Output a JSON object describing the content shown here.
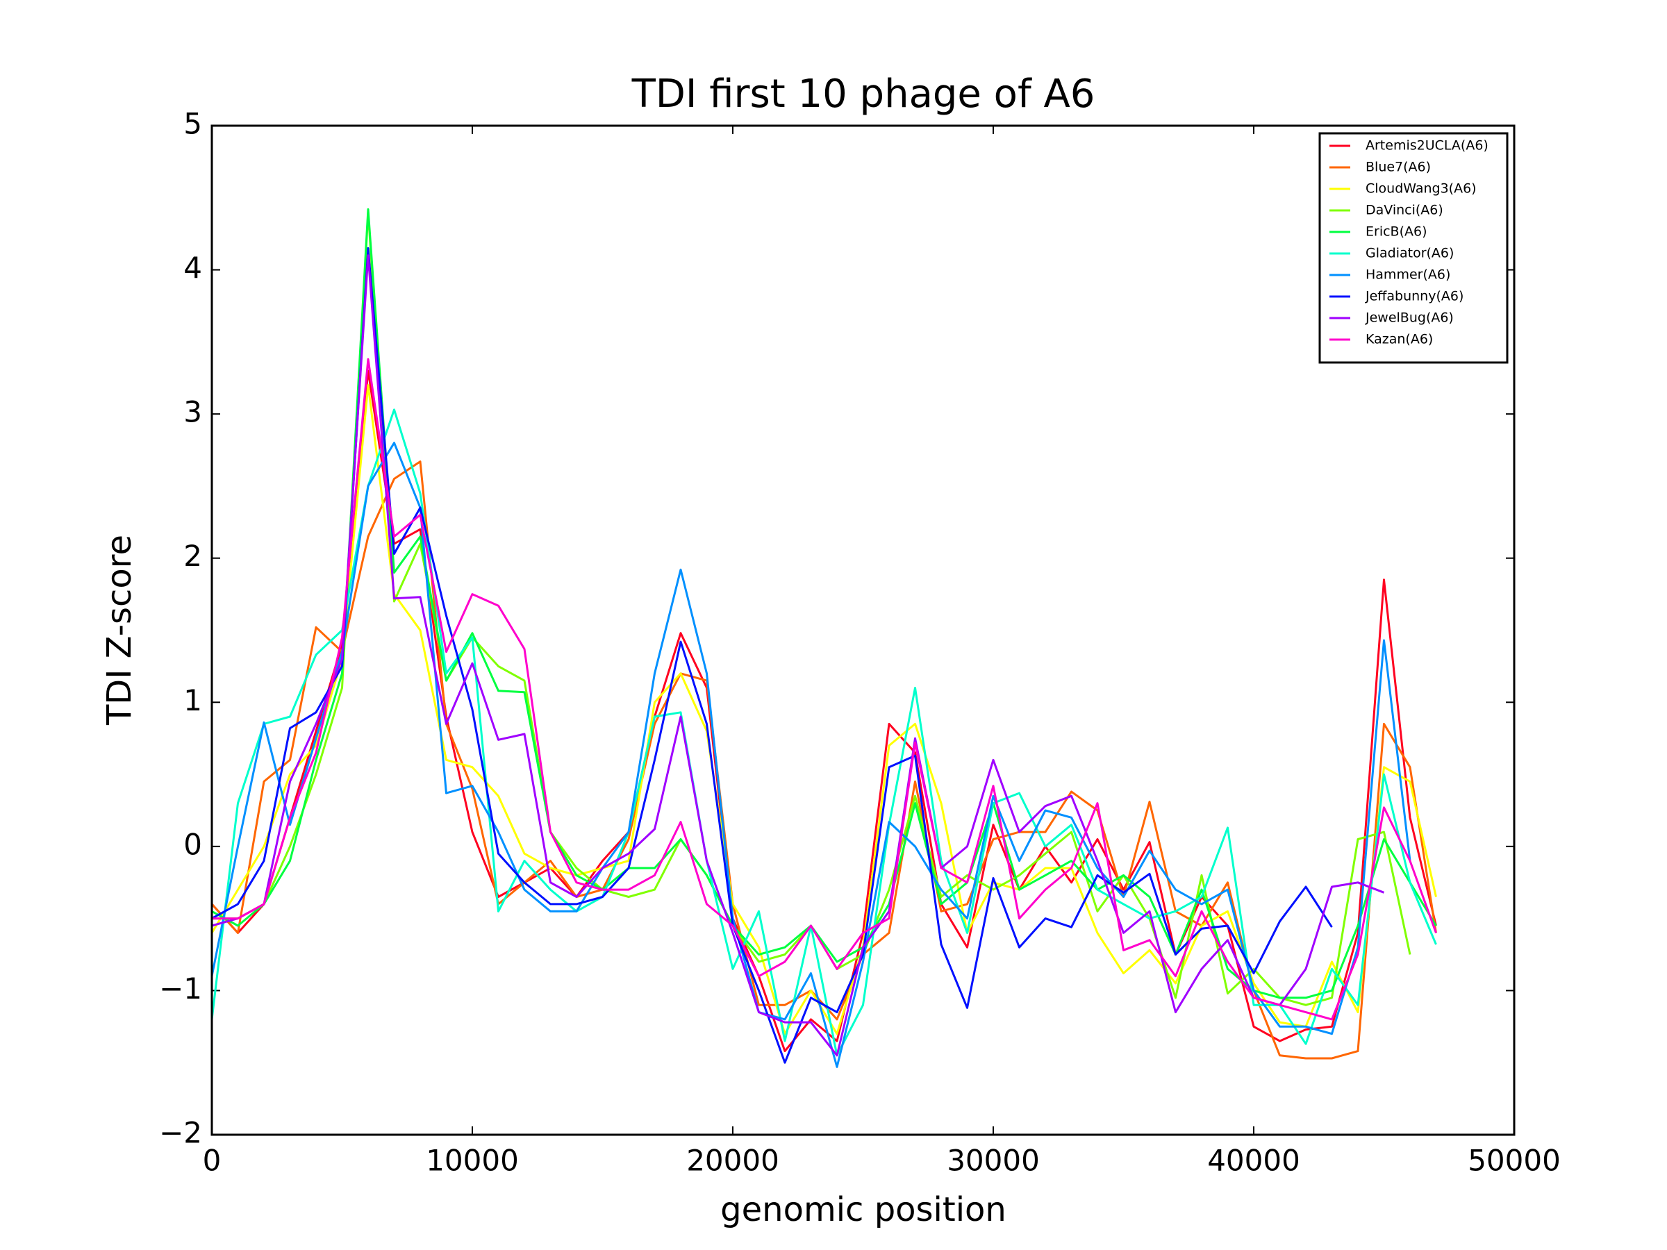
{
  "chart_data": {
    "type": "line",
    "title": "TDI first 10 phage of A6",
    "x_label": "genomic position",
    "y_label": "TDI Z-score",
    "legend": "upper right",
    "grid": false,
    "xlim": [
      0,
      50000
    ],
    "xticks": [
      0,
      10000,
      20000,
      30000,
      40000,
      50000
    ],
    "ylim": [
      -2,
      5
    ],
    "yticks": [
      {
        "value": -2,
        "label": "−2"
      },
      {
        "value": -1,
        "label": "−1"
      },
      0,
      1,
      2,
      3,
      4,
      5
    ],
    "x": [
      0,
      1000,
      2000,
      3000,
      4000,
      5000,
      6000,
      7000,
      8000,
      9000,
      10000,
      11000,
      12000,
      13000,
      14000,
      15000,
      16000,
      17000,
      18000,
      19000,
      20000,
      21000,
      22000,
      23000,
      24000,
      25000,
      26000,
      27000,
      28000,
      29000,
      30000,
      31000,
      32000,
      33000,
      34000,
      35000,
      36000,
      37000,
      38000,
      39000,
      40000,
      41000,
      42000,
      43000,
      44000,
      45000,
      46000,
      47000
    ],
    "series": [
      {
        "name": "Artemis2UCLA(A6)",
        "color": "#ff0020",
        "values": [
          -0.4,
          -0.6,
          -0.4,
          0.2,
          0.8,
          1.4,
          3.3,
          2.1,
          2.2,
          0.9,
          0.1,
          -0.35,
          -0.25,
          -0.15,
          -0.35,
          -0.1,
          0.1,
          0.9,
          1.48,
          1.1,
          -0.5,
          -0.9,
          -1.42,
          -1.2,
          -1.35,
          -0.6,
          0.85,
          0.65,
          -0.4,
          -0.7,
          0.15,
          -0.3,
          0.0,
          -0.25,
          0.05,
          -0.3,
          0.03,
          -0.75,
          -0.35,
          -0.55,
          -1.25,
          -1.35,
          -1.27,
          -1.25,
          -0.6,
          1.85,
          0.2,
          -0.55
        ]
      },
      {
        "name": "Blue7(A6)",
        "color": "#ff6600",
        "values": [
          -0.4,
          -0.6,
          0.45,
          0.6,
          1.52,
          1.35,
          2.15,
          2.55,
          2.67,
          0.85,
          0.4,
          -0.4,
          -0.25,
          -0.1,
          -0.35,
          -0.3,
          0.05,
          0.85,
          1.2,
          1.15,
          -0.4,
          -1.1,
          -1.1,
          -1.0,
          -1.2,
          -0.75,
          -0.6,
          0.45,
          -0.45,
          -0.4,
          0.05,
          0.1,
          0.1,
          0.38,
          0.25,
          -0.35,
          0.31,
          -0.45,
          -0.55,
          -0.25,
          -1.0,
          -1.45,
          -1.47,
          -1.47,
          -1.42,
          0.85,
          0.55,
          -0.6
        ]
      },
      {
        "name": "CloudWang3(A6)",
        "color": "#ffff00",
        "values": [
          -0.6,
          -0.3,
          0.0,
          0.5,
          0.7,
          1.3,
          3.2,
          1.75,
          1.5,
          0.6,
          0.55,
          0.35,
          -0.05,
          -0.15,
          -0.2,
          -0.15,
          -0.1,
          1.0,
          1.2,
          0.8,
          -0.4,
          -0.7,
          -1.3,
          -1.0,
          -1.3,
          -0.7,
          0.7,
          0.85,
          0.3,
          -0.6,
          -0.25,
          -0.3,
          -0.15,
          -0.15,
          -0.6,
          -0.88,
          -0.72,
          -0.95,
          -0.55,
          -0.45,
          -0.95,
          -1.22,
          -1.25,
          -0.8,
          -1.15,
          0.55,
          0.45,
          -0.35
        ]
      },
      {
        "name": "DaVinci(A6)",
        "color": "#80ff00",
        "values": [
          -0.5,
          -0.5,
          -0.4,
          0.0,
          0.5,
          1.1,
          4.4,
          1.7,
          2.1,
          1.15,
          1.45,
          1.25,
          1.15,
          0.1,
          -0.15,
          -0.3,
          -0.35,
          -0.3,
          0.05,
          -0.2,
          -0.55,
          -0.8,
          -0.75,
          -0.55,
          -0.85,
          -0.75,
          -0.3,
          0.35,
          -0.35,
          -0.2,
          -0.3,
          -0.2,
          -0.05,
          0.1,
          -0.45,
          -0.2,
          -0.5,
          -1.05,
          -0.2,
          -1.02,
          -0.85,
          -1.05,
          -1.1,
          -1.05,
          0.05,
          0.1,
          -0.75,
          null
        ]
      },
      {
        "name": "EricB(A6)",
        "color": "#00ff40",
        "values": [
          -0.45,
          -0.55,
          -0.4,
          -0.1,
          0.6,
          1.2,
          4.42,
          1.9,
          2.15,
          1.15,
          1.48,
          1.08,
          1.07,
          0.1,
          -0.2,
          -0.3,
          -0.15,
          -0.15,
          0.05,
          -0.2,
          -0.55,
          -0.75,
          -0.7,
          -0.55,
          -0.8,
          -0.7,
          -0.4,
          0.3,
          -0.4,
          -0.25,
          0.3,
          -0.3,
          -0.2,
          -0.1,
          -0.3,
          -0.2,
          -0.35,
          -0.75,
          -0.3,
          -0.85,
          -1.0,
          -1.05,
          -1.05,
          -1.0,
          -0.55,
          0.05,
          -0.25,
          -0.55
        ]
      },
      {
        "name": "Gladiator(A6)",
        "color": "#00ffcc",
        "values": [
          -1.2,
          0.3,
          0.85,
          0.9,
          1.33,
          1.5,
          2.5,
          3.03,
          2.45,
          1.2,
          1.45,
          -0.45,
          -0.1,
          -0.3,
          -0.45,
          -0.35,
          0.1,
          0.9,
          0.93,
          -0.1,
          -0.85,
          -0.45,
          -1.35,
          -0.55,
          -1.45,
          -1.1,
          0.15,
          1.1,
          -0.1,
          -0.6,
          0.3,
          0.37,
          0.0,
          0.15,
          -0.3,
          -0.4,
          -0.5,
          -0.45,
          -0.35,
          0.13,
          -1.1,
          -1.1,
          -1.37,
          -0.85,
          -1.1,
          0.5,
          -0.25,
          -0.68
        ]
      },
      {
        "name": "Hammer(A6)",
        "color": "#0090ff",
        "values": [
          -0.9,
          0.0,
          0.86,
          0.15,
          0.75,
          1.35,
          2.5,
          2.8,
          2.35,
          0.37,
          0.42,
          0.1,
          -0.3,
          -0.45,
          -0.45,
          -0.15,
          0.1,
          1.2,
          1.92,
          1.2,
          -0.5,
          -1.15,
          -1.2,
          -0.88,
          -1.53,
          -0.8,
          0.17,
          0.0,
          -0.3,
          -0.5,
          0.35,
          -0.1,
          0.25,
          0.2,
          -0.15,
          -0.35,
          -0.03,
          -0.3,
          -0.4,
          -0.3,
          -1.0,
          -1.25,
          -1.25,
          -1.3,
          -0.7,
          1.43,
          -0.1,
          null
        ]
      },
      {
        "name": "Jeffabunny(A6)",
        "color": "#0010ff",
        "values": [
          -0.5,
          -0.4,
          -0.1,
          0.82,
          0.93,
          1.25,
          4.15,
          2.03,
          2.35,
          1.6,
          0.95,
          -0.05,
          -0.25,
          -0.4,
          -0.4,
          -0.35,
          -0.15,
          0.6,
          1.42,
          0.85,
          -0.55,
          -1.0,
          -1.5,
          -1.05,
          -1.15,
          -0.75,
          0.55,
          0.63,
          -0.68,
          -1.12,
          -0.22,
          -0.7,
          -0.5,
          -0.56,
          -0.2,
          -0.32,
          -0.19,
          -0.75,
          -0.57,
          -0.55,
          -0.88,
          -0.52,
          -0.28,
          -0.56,
          null,
          null,
          null,
          null
        ]
      },
      {
        "name": "JewelBug(A6)",
        "color": "#a000ff",
        "values": [
          -0.55,
          -0.5,
          -0.4,
          0.45,
          0.85,
          1.3,
          4.1,
          1.72,
          1.73,
          0.85,
          1.27,
          0.74,
          0.78,
          -0.25,
          -0.35,
          -0.15,
          -0.05,
          0.12,
          0.9,
          -0.1,
          -0.6,
          -1.15,
          -1.22,
          -1.22,
          -1.45,
          -0.7,
          -0.45,
          0.75,
          -0.15,
          0.0,
          0.6,
          0.1,
          0.28,
          0.35,
          -0.1,
          -0.6,
          -0.45,
          -1.15,
          -0.85,
          -0.65,
          -1.05,
          -1.1,
          -0.85,
          -0.28,
          -0.25,
          -0.32,
          null,
          null
        ]
      },
      {
        "name": "Kazan(A6)",
        "color": "#ff00cc",
        "values": [
          -0.5,
          -0.5,
          -0.4,
          0.2,
          0.65,
          1.45,
          3.38,
          2.15,
          2.3,
          1.35,
          1.75,
          1.67,
          1.37,
          0.1,
          -0.25,
          -0.3,
          -0.3,
          -0.2,
          0.17,
          -0.4,
          -0.55,
          -0.9,
          -0.8,
          -0.55,
          -0.85,
          -0.6,
          -0.5,
          0.72,
          -0.15,
          -0.25,
          0.42,
          -0.5,
          -0.3,
          -0.15,
          0.3,
          -0.72,
          -0.65,
          -0.9,
          -0.45,
          -0.8,
          -1.05,
          -1.1,
          -1.15,
          -1.2,
          -0.75,
          0.27,
          -0.1,
          -0.6
        ]
      }
    ]
  }
}
